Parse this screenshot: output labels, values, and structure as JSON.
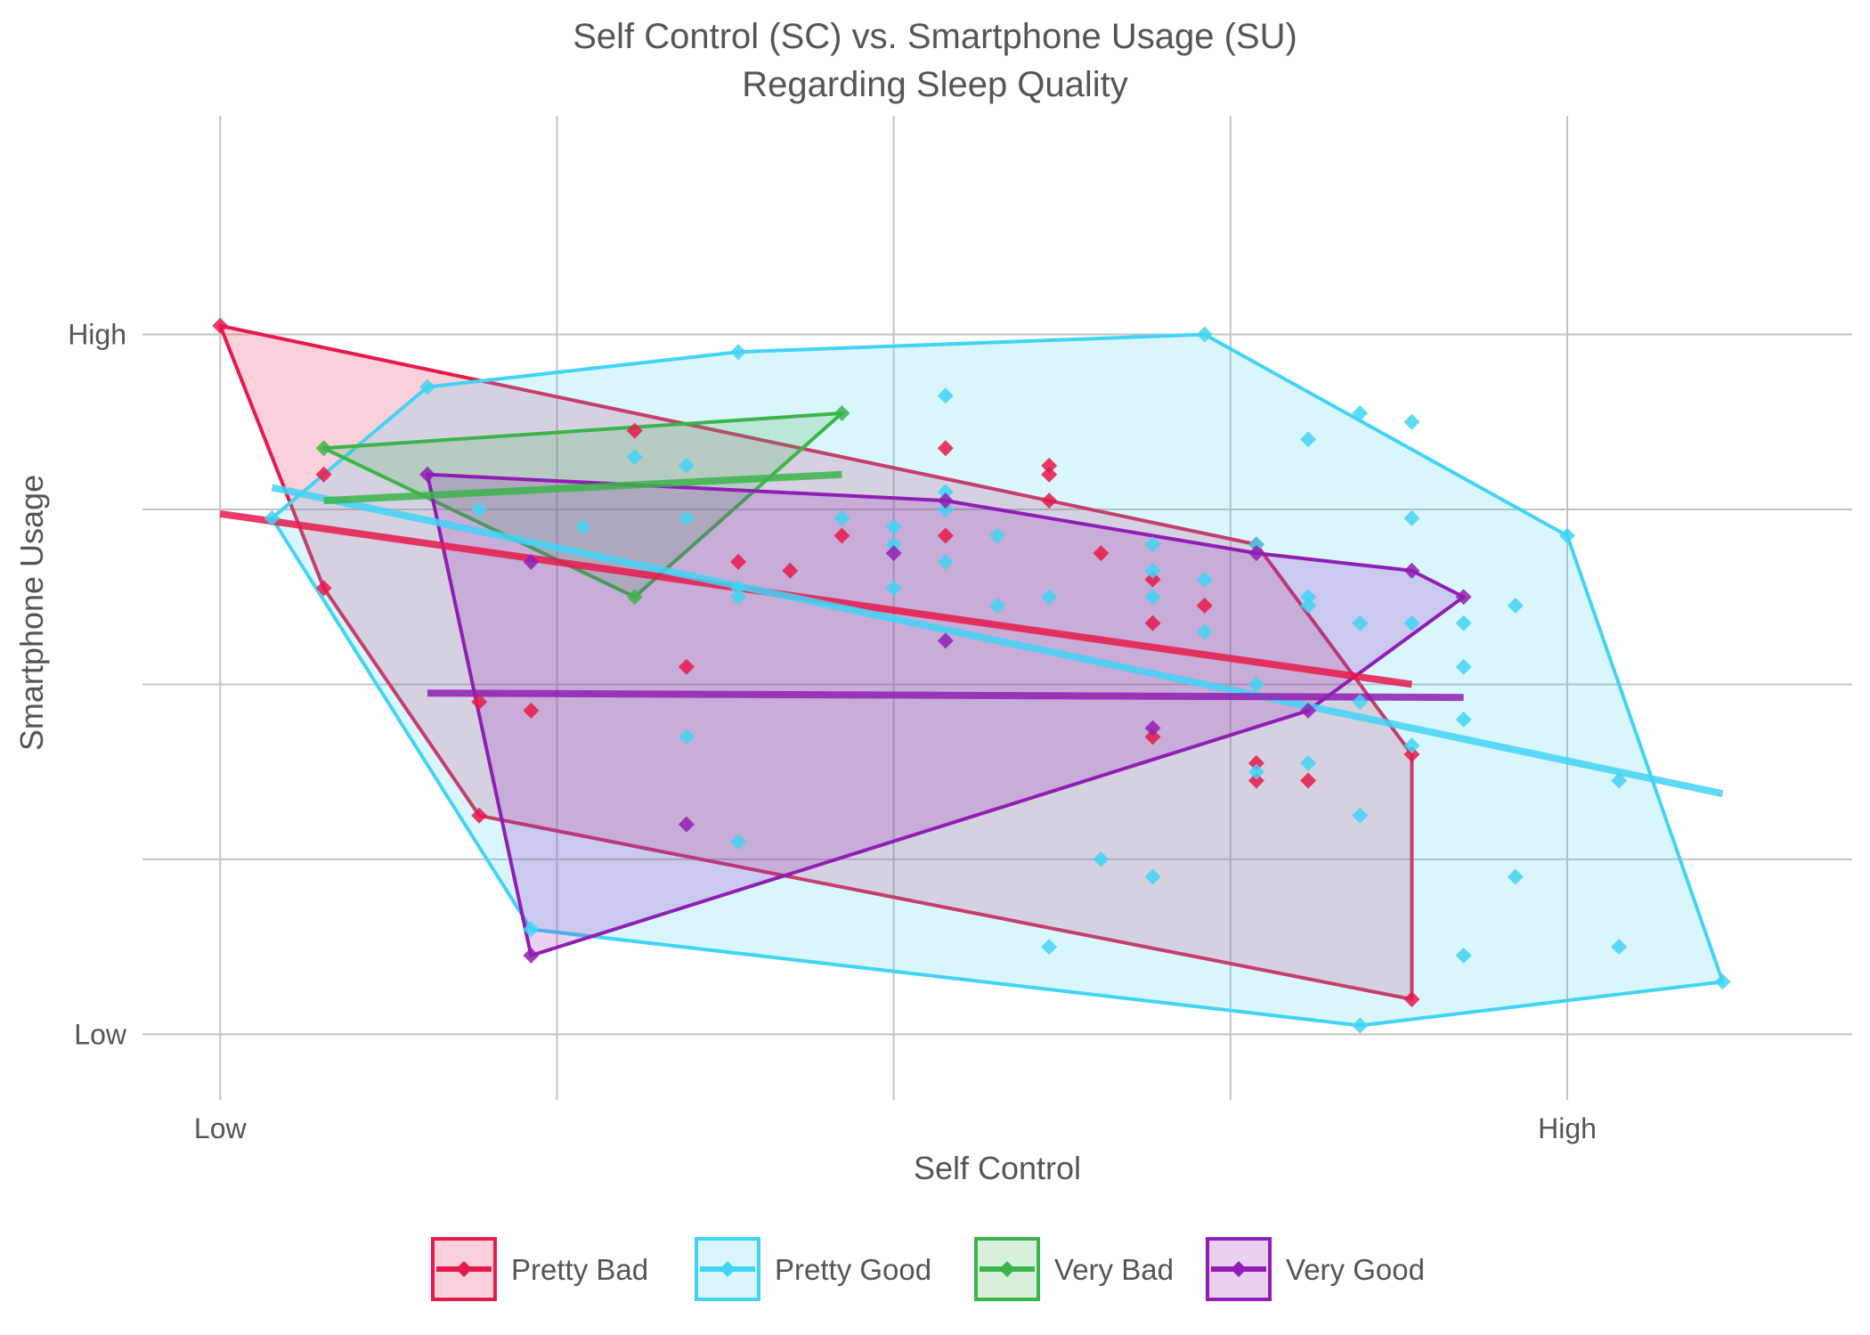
{
  "chart_data": {
    "type": "scatter",
    "title": [
      "Self Control (SC) vs. Smartphone Usage (SU)",
      "Regarding Sleep Quality"
    ],
    "xlabel": "Self Control",
    "ylabel": "Smartphone Usage",
    "xlim": [
      -0.15,
      3.15
    ],
    "ylim": [
      -0.15,
      2.1
    ],
    "x_ticks": [
      {
        "value": 0,
        "label": "Low"
      },
      {
        "value": 2.6,
        "label": "High"
      }
    ],
    "y_ticks": [
      {
        "value": 0,
        "label": "Low"
      },
      {
        "value": 1.6,
        "label": "High"
      }
    ],
    "grid": true,
    "legend_position": "bottom",
    "series": [
      {
        "name": "Pretty Bad",
        "color": "#e6194b",
        "hull": [
          [
            0.0,
            1.62
          ],
          [
            0.2,
            1.02
          ],
          [
            0.5,
            0.5
          ],
          [
            2.3,
            0.08
          ],
          [
            2.3,
            0.64
          ],
          [
            2.0,
            1.12
          ]
        ],
        "trend": [
          [
            0.0,
            1.19
          ],
          [
            2.3,
            0.8
          ]
        ],
        "points": [
          [
            0.0,
            1.62
          ],
          [
            0.2,
            1.02
          ],
          [
            0.2,
            1.28
          ],
          [
            0.5,
            0.5
          ],
          [
            0.5,
            0.76
          ],
          [
            0.6,
            0.74
          ],
          [
            0.8,
            1.38
          ],
          [
            0.9,
            0.84
          ],
          [
            1.0,
            1.08
          ],
          [
            1.1,
            1.06
          ],
          [
            1.2,
            1.14
          ],
          [
            1.4,
            1.34
          ],
          [
            1.4,
            1.14
          ],
          [
            1.6,
            1.22
          ],
          [
            1.7,
            1.1
          ],
          [
            1.8,
            1.04
          ],
          [
            1.8,
            0.94
          ],
          [
            1.9,
            0.98
          ],
          [
            1.6,
            1.28
          ],
          [
            2.0,
            1.12
          ],
          [
            2.3,
            0.64
          ],
          [
            2.3,
            0.08
          ],
          [
            1.8,
            0.68
          ],
          [
            2.0,
            0.62
          ],
          [
            2.0,
            0.58
          ],
          [
            2.1,
            0.58
          ],
          [
            1.6,
            1.3
          ]
        ]
      },
      {
        "name": "Pretty Good",
        "color": "#42d4f4",
        "hull": [
          [
            0.1,
            1.18
          ],
          [
            0.4,
            1.48
          ],
          [
            1.0,
            1.56
          ],
          [
            1.9,
            1.6
          ],
          [
            2.6,
            1.14
          ],
          [
            2.9,
            0.12
          ],
          [
            2.2,
            0.02
          ],
          [
            0.6,
            0.24
          ]
        ],
        "trend": [
          [
            0.1,
            1.25
          ],
          [
            2.9,
            0.55
          ]
        ],
        "points": [
          [
            0.1,
            1.18
          ],
          [
            0.4,
            1.48
          ],
          [
            1.0,
            1.56
          ],
          [
            1.9,
            1.6
          ],
          [
            2.6,
            1.14
          ],
          [
            2.9,
            0.12
          ],
          [
            2.2,
            0.02
          ],
          [
            0.6,
            0.24
          ],
          [
            1.4,
            1.46
          ],
          [
            2.2,
            1.42
          ],
          [
            2.3,
            1.4
          ],
          [
            2.1,
            1.36
          ],
          [
            2.3,
            1.18
          ],
          [
            0.8,
            1.32
          ],
          [
            0.9,
            1.3
          ],
          [
            0.9,
            1.18
          ],
          [
            0.5,
            1.2
          ],
          [
            0.7,
            1.16
          ],
          [
            1.2,
            1.18
          ],
          [
            1.3,
            1.16
          ],
          [
            1.4,
            1.2
          ],
          [
            1.5,
            1.14
          ],
          [
            1.3,
            1.12
          ],
          [
            1.4,
            1.08
          ],
          [
            1.6,
            1.0
          ],
          [
            1.5,
            0.98
          ],
          [
            1.8,
            1.12
          ],
          [
            1.8,
            1.06
          ],
          [
            1.9,
            1.04
          ],
          [
            2.0,
            1.12
          ],
          [
            2.1,
            0.98
          ],
          [
            2.1,
            1.0
          ],
          [
            2.2,
            0.94
          ],
          [
            2.3,
            0.94
          ],
          [
            2.4,
            0.94
          ],
          [
            2.5,
            0.98
          ],
          [
            2.4,
            0.84
          ],
          [
            1.8,
            1.0
          ],
          [
            1.9,
            0.92
          ],
          [
            2.0,
            0.8
          ],
          [
            2.2,
            0.76
          ],
          [
            2.4,
            0.72
          ],
          [
            2.3,
            0.66
          ],
          [
            2.1,
            0.62
          ],
          [
            2.0,
            0.6
          ],
          [
            0.9,
            0.68
          ],
          [
            2.2,
            0.5
          ],
          [
            2.7,
            0.58
          ],
          [
            1.7,
            0.4
          ],
          [
            1.8,
            0.36
          ],
          [
            2.5,
            0.36
          ],
          [
            1.0,
            0.44
          ],
          [
            1.6,
            0.2
          ],
          [
            2.4,
            0.18
          ],
          [
            2.7,
            0.2
          ],
          [
            1.4,
            1.24
          ],
          [
            1.0,
            1.02
          ],
          [
            1.0,
            1.0
          ],
          [
            1.3,
            1.02
          ]
        ]
      },
      {
        "name": "Very Bad",
        "color": "#3cb44b",
        "hull": [
          [
            0.2,
            1.34
          ],
          [
            1.2,
            1.42
          ],
          [
            0.8,
            1.0
          ]
        ],
        "trend": [
          [
            0.2,
            1.22
          ],
          [
            1.2,
            1.28
          ]
        ],
        "points": [
          [
            0.2,
            1.34
          ],
          [
            1.2,
            1.42
          ],
          [
            0.8,
            1.0
          ]
        ]
      },
      {
        "name": "Very Good",
        "color": "#911eb4",
        "hull": [
          [
            0.4,
            1.28
          ],
          [
            1.4,
            1.22
          ],
          [
            2.0,
            1.1
          ],
          [
            2.3,
            1.06
          ],
          [
            2.4,
            1.0
          ],
          [
            2.1,
            0.74
          ],
          [
            0.6,
            0.18
          ],
          [
            0.4,
            1.28
          ]
        ],
        "trend": [
          [
            0.4,
            0.78
          ],
          [
            2.4,
            0.77
          ]
        ],
        "points": [
          [
            0.4,
            1.28
          ],
          [
            1.4,
            1.22
          ],
          [
            2.0,
            1.1
          ],
          [
            2.3,
            1.06
          ],
          [
            2.4,
            1.0
          ],
          [
            2.1,
            0.74
          ],
          [
            0.6,
            0.18
          ],
          [
            0.6,
            1.08
          ],
          [
            1.3,
            1.1
          ],
          [
            1.4,
            0.9
          ],
          [
            1.8,
            0.7
          ],
          [
            0.9,
            0.48
          ]
        ]
      }
    ]
  }
}
